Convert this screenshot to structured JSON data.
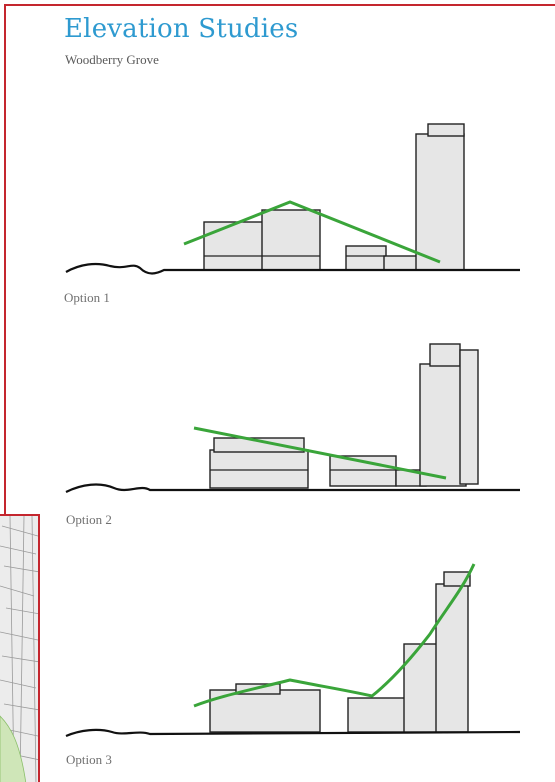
{
  "header": {
    "title": "Elevation Studies",
    "subtitle": "Woodberry Grove"
  },
  "options": [
    {
      "label": "Option 1"
    },
    {
      "label": "Option 2"
    },
    {
      "label": "Option 3"
    }
  ],
  "colors": {
    "title": "#2e9ad0",
    "frame": "#c4262e",
    "massing_line": "#3aa53a",
    "building_fill": "#e6e6e6"
  }
}
